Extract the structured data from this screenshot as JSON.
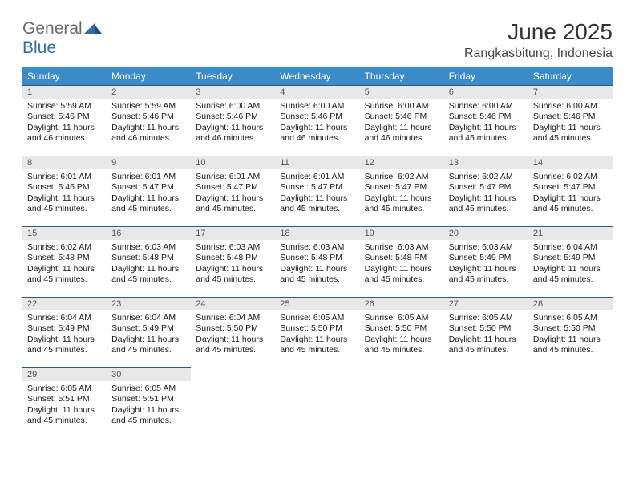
{
  "brand": {
    "word1": "General",
    "word2": "Blue"
  },
  "header": {
    "title": "June 2025",
    "location": "Rangkasbitung, Indonesia"
  },
  "colors": {
    "header_bg": "#3b8bc8",
    "header_text": "#ffffff",
    "daynum_bg": "#e8e8e8",
    "daynum_border": "#2b5a84",
    "body_text": "#1a1a1a",
    "logo_gray": "#6b6b6b",
    "logo_blue": "#2f6fa8"
  },
  "weekdays": [
    "Sunday",
    "Monday",
    "Tuesday",
    "Wednesday",
    "Thursday",
    "Friday",
    "Saturday"
  ],
  "weeks": [
    [
      {
        "n": "1",
        "sr": "5:59 AM",
        "ss": "5:46 PM",
        "dl": "11 hours and 46 minutes."
      },
      {
        "n": "2",
        "sr": "5:59 AM",
        "ss": "5:46 PM",
        "dl": "11 hours and 46 minutes."
      },
      {
        "n": "3",
        "sr": "6:00 AM",
        "ss": "5:46 PM",
        "dl": "11 hours and 46 minutes."
      },
      {
        "n": "4",
        "sr": "6:00 AM",
        "ss": "5:46 PM",
        "dl": "11 hours and 46 minutes."
      },
      {
        "n": "5",
        "sr": "6:00 AM",
        "ss": "5:46 PM",
        "dl": "11 hours and 46 minutes."
      },
      {
        "n": "6",
        "sr": "6:00 AM",
        "ss": "5:46 PM",
        "dl": "11 hours and 45 minutes."
      },
      {
        "n": "7",
        "sr": "6:00 AM",
        "ss": "5:46 PM",
        "dl": "11 hours and 45 minutes."
      }
    ],
    [
      {
        "n": "8",
        "sr": "6:01 AM",
        "ss": "5:46 PM",
        "dl": "11 hours and 45 minutes."
      },
      {
        "n": "9",
        "sr": "6:01 AM",
        "ss": "5:47 PM",
        "dl": "11 hours and 45 minutes."
      },
      {
        "n": "10",
        "sr": "6:01 AM",
        "ss": "5:47 PM",
        "dl": "11 hours and 45 minutes."
      },
      {
        "n": "11",
        "sr": "6:01 AM",
        "ss": "5:47 PM",
        "dl": "11 hours and 45 minutes."
      },
      {
        "n": "12",
        "sr": "6:02 AM",
        "ss": "5:47 PM",
        "dl": "11 hours and 45 minutes."
      },
      {
        "n": "13",
        "sr": "6:02 AM",
        "ss": "5:47 PM",
        "dl": "11 hours and 45 minutes."
      },
      {
        "n": "14",
        "sr": "6:02 AM",
        "ss": "5:47 PM",
        "dl": "11 hours and 45 minutes."
      }
    ],
    [
      {
        "n": "15",
        "sr": "6:02 AM",
        "ss": "5:48 PM",
        "dl": "11 hours and 45 minutes."
      },
      {
        "n": "16",
        "sr": "6:03 AM",
        "ss": "5:48 PM",
        "dl": "11 hours and 45 minutes."
      },
      {
        "n": "17",
        "sr": "6:03 AM",
        "ss": "5:48 PM",
        "dl": "11 hours and 45 minutes."
      },
      {
        "n": "18",
        "sr": "6:03 AM",
        "ss": "5:48 PM",
        "dl": "11 hours and 45 minutes."
      },
      {
        "n": "19",
        "sr": "6:03 AM",
        "ss": "5:48 PM",
        "dl": "11 hours and 45 minutes."
      },
      {
        "n": "20",
        "sr": "6:03 AM",
        "ss": "5:49 PM",
        "dl": "11 hours and 45 minutes."
      },
      {
        "n": "21",
        "sr": "6:04 AM",
        "ss": "5:49 PM",
        "dl": "11 hours and 45 minutes."
      }
    ],
    [
      {
        "n": "22",
        "sr": "6:04 AM",
        "ss": "5:49 PM",
        "dl": "11 hours and 45 minutes."
      },
      {
        "n": "23",
        "sr": "6:04 AM",
        "ss": "5:49 PM",
        "dl": "11 hours and 45 minutes."
      },
      {
        "n": "24",
        "sr": "6:04 AM",
        "ss": "5:50 PM",
        "dl": "11 hours and 45 minutes."
      },
      {
        "n": "25",
        "sr": "6:05 AM",
        "ss": "5:50 PM",
        "dl": "11 hours and 45 minutes."
      },
      {
        "n": "26",
        "sr": "6:05 AM",
        "ss": "5:50 PM",
        "dl": "11 hours and 45 minutes."
      },
      {
        "n": "27",
        "sr": "6:05 AM",
        "ss": "5:50 PM",
        "dl": "11 hours and 45 minutes."
      },
      {
        "n": "28",
        "sr": "6:05 AM",
        "ss": "5:50 PM",
        "dl": "11 hours and 45 minutes."
      }
    ],
    [
      {
        "n": "29",
        "sr": "6:05 AM",
        "ss": "5:51 PM",
        "dl": "11 hours and 45 minutes."
      },
      {
        "n": "30",
        "sr": "6:05 AM",
        "ss": "5:51 PM",
        "dl": "11 hours and 45 minutes."
      },
      null,
      null,
      null,
      null,
      null
    ]
  ],
  "labels": {
    "sunrise": "Sunrise: ",
    "sunset": "Sunset: ",
    "daylight": "Daylight: "
  }
}
